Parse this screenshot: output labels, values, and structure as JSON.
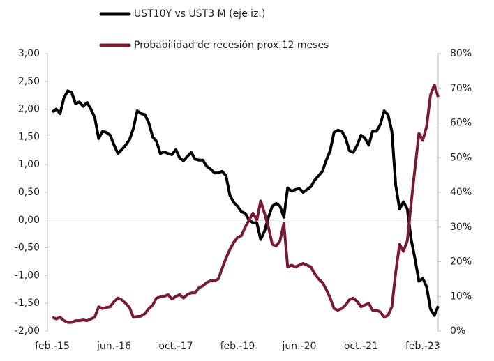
{
  "chart_data": {
    "type": "line",
    "categories": [
      "feb.-15",
      null,
      null,
      null,
      null,
      null,
      null,
      null,
      null,
      null,
      null,
      null,
      null,
      null,
      null,
      null,
      "jun.-16",
      null,
      null,
      null,
      null,
      null,
      null,
      null,
      null,
      null,
      null,
      null,
      null,
      null,
      null,
      null,
      "oct.-17",
      null,
      null,
      null,
      null,
      null,
      null,
      null,
      null,
      null,
      null,
      null,
      null,
      null,
      null,
      null,
      "feb.-19",
      null,
      null,
      null,
      null,
      null,
      null,
      null,
      null,
      null,
      null,
      null,
      null,
      null,
      null,
      null,
      "jun.-20",
      null,
      null,
      null,
      null,
      null,
      null,
      null,
      null,
      null,
      null,
      null,
      null,
      null,
      null,
      null,
      "oct.-21",
      null,
      null,
      null,
      null,
      null,
      null,
      null,
      null,
      null,
      null,
      null,
      null,
      null,
      null,
      null,
      "feb.-23",
      null,
      null,
      null,
      null
    ],
    "series": [
      {
        "name": "UST10Y vs UST3 M (eje iz.)",
        "color": "#000000",
        "axis": "y",
        "values": [
          1.95,
          2.0,
          1.92,
          2.2,
          2.33,
          2.3,
          2.1,
          2.13,
          2.05,
          2.12,
          2.0,
          1.85,
          1.47,
          1.6,
          1.58,
          1.53,
          1.35,
          1.2,
          1.27,
          1.35,
          1.45,
          1.65,
          1.97,
          1.92,
          1.9,
          1.75,
          1.5,
          1.42,
          1.2,
          1.23,
          1.2,
          1.18,
          1.27,
          1.12,
          1.07,
          1.15,
          1.22,
          1.1,
          1.08,
          1.08,
          0.97,
          0.92,
          0.85,
          0.85,
          0.88,
          0.8,
          0.45,
          0.32,
          0.25,
          0.15,
          0.12,
          0.0,
          -0.05,
          -0.05,
          -0.35,
          -0.2,
          0.05,
          0.25,
          0.3,
          0.25,
          0.05,
          0.58,
          0.52,
          0.55,
          0.57,
          0.5,
          0.55,
          0.6,
          0.72,
          0.8,
          0.88,
          1.08,
          1.25,
          1.58,
          1.62,
          1.6,
          1.48,
          1.25,
          1.22,
          1.35,
          1.53,
          1.48,
          1.35,
          1.6,
          1.6,
          1.72,
          1.97,
          1.9,
          1.6,
          0.62,
          0.2,
          0.33,
          0.2,
          -0.35,
          -0.7,
          -1.1,
          -1.05,
          -1.2,
          -1.6,
          -1.72,
          -1.55
        ]
      },
      {
        "name": "Probabilidad de recesión prox.12 meses",
        "color": "#7b1a33",
        "axis": "y2",
        "values": [
          4,
          3.5,
          4,
          3,
          2.5,
          2.5,
          3,
          3,
          3.2,
          3,
          3.5,
          4,
          7,
          6.5,
          6.8,
          7,
          8.5,
          9.5,
          9,
          8,
          6.8,
          4,
          4.2,
          4.3,
          5,
          6.5,
          7.5,
          9.5,
          9.8,
          10,
          10.5,
          9.2,
          10,
          10.5,
          9.5,
          10.5,
          11,
          11,
          12.5,
          13,
          14,
          14.5,
          14.5,
          15,
          18,
          21,
          23.5,
          25.5,
          27,
          27.5,
          30,
          32,
          34,
          32,
          37.5,
          34,
          30,
          25,
          24.5,
          26,
          31,
          18.5,
          19,
          18.5,
          19,
          19.5,
          19,
          18.5,
          16.5,
          15,
          14,
          12,
          9.5,
          6.5,
          6,
          6.5,
          7.5,
          9,
          9.5,
          8.5,
          7,
          7.5,
          8,
          6,
          6,
          5.5,
          4,
          4.5,
          7,
          17,
          25,
          23,
          26,
          37,
          47,
          57,
          55,
          59,
          68,
          71,
          67.5
        ]
      }
    ],
    "ylim": [
      -2,
      3
    ],
    "yticks": [
      {
        "value": -2,
        "label": "-2,00"
      },
      {
        "value": -1.5,
        "label": "-1,50"
      },
      {
        "value": -1,
        "label": "-1,00"
      },
      {
        "value": -0.5,
        "label": "-0,50"
      },
      {
        "value": 0,
        "label": "0,00"
      },
      {
        "value": 0.5,
        "label": "0,50"
      },
      {
        "value": 1,
        "label": "1,00"
      },
      {
        "value": 1.5,
        "label": "1,50"
      },
      {
        "value": 2,
        "label": "2,00"
      },
      {
        "value": 2.5,
        "label": "2,50"
      },
      {
        "value": 3,
        "label": "3,00"
      }
    ],
    "y2lim": [
      0,
      80
    ],
    "y2ticks": [
      {
        "value": 0,
        "label": "0%"
      },
      {
        "value": 10,
        "label": "10%"
      },
      {
        "value": 20,
        "label": "20%"
      },
      {
        "value": 30,
        "label": "30%"
      },
      {
        "value": 40,
        "label": "40%"
      },
      {
        "value": 50,
        "label": "50%"
      },
      {
        "value": 60,
        "label": "60%"
      },
      {
        "value": 70,
        "label": "70%"
      },
      {
        "value": 80,
        "label": "80%"
      }
    ],
    "grid": false,
    "legend": "top"
  }
}
